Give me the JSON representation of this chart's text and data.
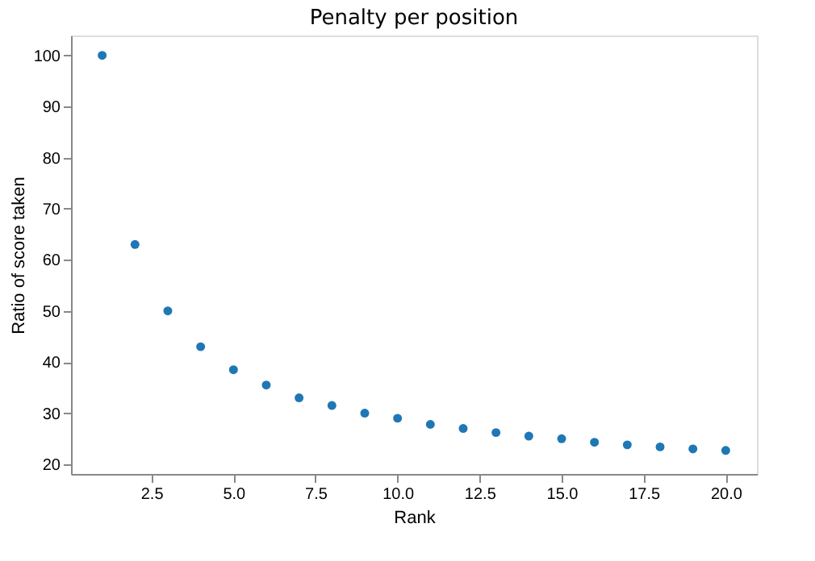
{
  "chart_data": {
    "type": "scatter",
    "title": "Penalty per position",
    "xlabel": "Rank",
    "ylabel": "Ratio of score taken",
    "x": [
      1,
      2,
      3,
      4,
      5,
      6,
      7,
      8,
      9,
      10,
      11,
      12,
      13,
      14,
      15,
      16,
      17,
      18,
      19,
      20
    ],
    "series": [
      {
        "color": "#1f77b4",
        "values": [
          100,
          63,
          50,
          43,
          38.5,
          35.5,
          33,
          31.5,
          30,
          29,
          27.8,
          27,
          26.2,
          25.5,
          25,
          24.3,
          23.8,
          23.4,
          23,
          22.7
        ]
      }
    ],
    "xlim": [
      0.05,
      20.95
    ],
    "ylim": [
      18.1,
      103.9
    ],
    "xticks": [
      2.5,
      {
        "value": 5,
        "label": "5.0"
      },
      7.5,
      {
        "value": 10,
        "label": "10.0"
      },
      12.5,
      {
        "value": 15,
        "label": "15.0"
      },
      17.5,
      {
        "value": 20,
        "label": "20.0"
      }
    ],
    "yticks": [
      20,
      30,
      40,
      50,
      60,
      70,
      80,
      90,
      100
    ],
    "marker": "circle",
    "grid": false
  }
}
